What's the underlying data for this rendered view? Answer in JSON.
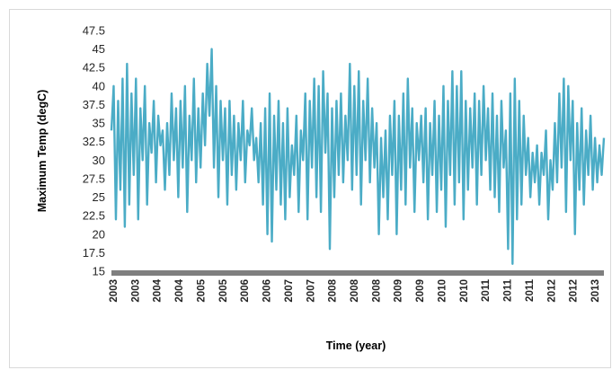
{
  "chart_data": {
    "type": "line",
    "title": "",
    "xlabel": "Time (year)",
    "ylabel": "Maximum Temp (degC)",
    "ylim": [
      15,
      47.5
    ],
    "yticks": [
      "15",
      "17.5",
      "20",
      "22.5",
      "25",
      "27.5",
      "30",
      "32.5",
      "35",
      "37.5",
      "40",
      "42.5",
      "45",
      "47.5"
    ],
    "xtick_labels": [
      "2003",
      "2003",
      "2004",
      "2004",
      "2005",
      "2005",
      "2006",
      "2006",
      "2007",
      "2007",
      "2008",
      "2008",
      "2008",
      "2009",
      "2009",
      "2010",
      "2010",
      "2011",
      "2011",
      "2011",
      "2012",
      "2012",
      "2013"
    ],
    "x_range": [
      "2003",
      "2013"
    ],
    "grid": false,
    "series": [
      {
        "color": "#4bacc6",
        "values": [
          34,
          40,
          22,
          38,
          26,
          41,
          21,
          43,
          24,
          39,
          28,
          41,
          22,
          37,
          30,
          40,
          24,
          35,
          31,
          38,
          27,
          36,
          32,
          34,
          26,
          35,
          28,
          39,
          30,
          37,
          25,
          38,
          29,
          40,
          23,
          36,
          30,
          41,
          27,
          37,
          29,
          39,
          32,
          43,
          36,
          45,
          29,
          40,
          25,
          38,
          30,
          37,
          24,
          38,
          28,
          36,
          26,
          35,
          30,
          38,
          27,
          34,
          32,
          37,
          30,
          33,
          27,
          35,
          24,
          37,
          20,
          39,
          19,
          36,
          26,
          38,
          24,
          35,
          22,
          37,
          25,
          32,
          28,
          36,
          23,
          34,
          30,
          39,
          22,
          38,
          29,
          41,
          25,
          40,
          23,
          42,
          31,
          39,
          18,
          37,
          25,
          38,
          28,
          39,
          27,
          36,
          30,
          43,
          26,
          40,
          28,
          42,
          24,
          38,
          30,
          41,
          27,
          37,
          29,
          35,
          20,
          33,
          25,
          34,
          22,
          36,
          28,
          38,
          20,
          36,
          26,
          39,
          24,
          41,
          29,
          37,
          23,
          35,
          30,
          36,
          27,
          37,
          22,
          35,
          28,
          38,
          23,
          36,
          26,
          40,
          21,
          38,
          28,
          42,
          24,
          40,
          27,
          42,
          22,
          38,
          26,
          37,
          29,
          39,
          24,
          38,
          28,
          40,
          30,
          37,
          26,
          39,
          25,
          36,
          23,
          38,
          29,
          34,
          18,
          39,
          16,
          41,
          22,
          38,
          24,
          36,
          28,
          33,
          25,
          31,
          27,
          32,
          24,
          31,
          28,
          34,
          22,
          30,
          26,
          35,
          27,
          39,
          29,
          41,
          23,
          40,
          30,
          38,
          20,
          35,
          26,
          37,
          24,
          34,
          28,
          36,
          26,
          33,
          27,
          32,
          28,
          33
        ]
      }
    ]
  }
}
